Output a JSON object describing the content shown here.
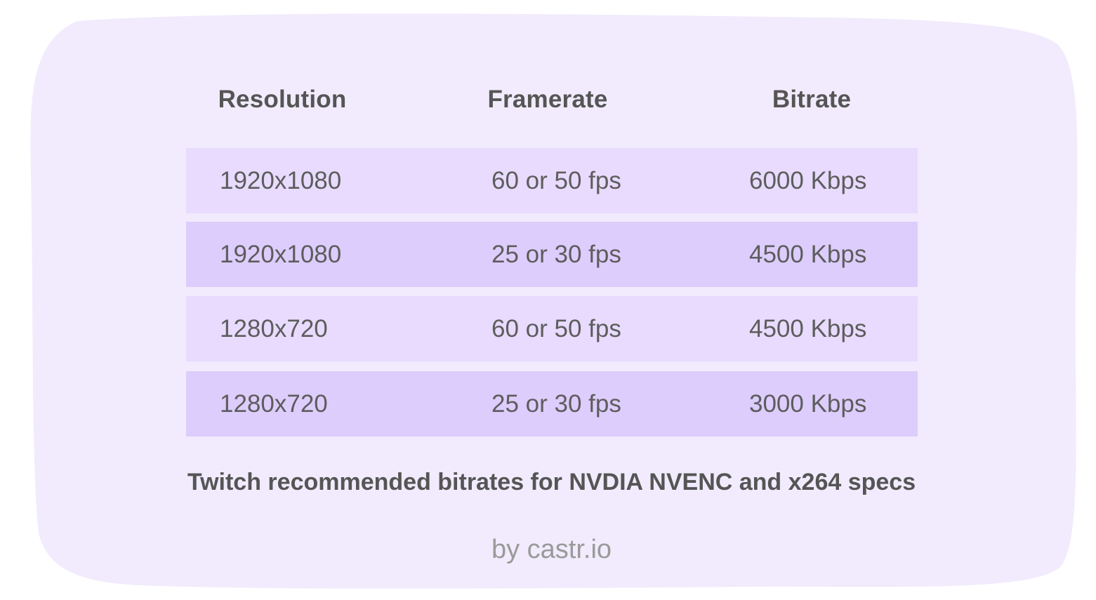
{
  "colors": {
    "background_blob": "#f1ebfd",
    "row_light": "#e8dbfe",
    "row_dark": "#ddcdfc",
    "header_text": "#555555",
    "cell_text": "#5d5d5d",
    "credit_text": "#9a9a9a"
  },
  "chart_data": {
    "type": "table",
    "columns": [
      "Resolution",
      "Framerate",
      "Bitrate"
    ],
    "rows": [
      [
        "1920x1080",
        "60 or 50 fps",
        "6000 Kbps"
      ],
      [
        "1920x1080",
        "25 or 30 fps",
        "4500 Kbps"
      ],
      [
        "1280x720",
        "60 or 50 fps",
        "4500 Kbps"
      ],
      [
        "1280x720",
        "25 or 30 fps",
        "3000 Kbps"
      ]
    ],
    "caption": "Twitch recommended bitrates for NVDIA NVENC and x264 specs",
    "credit": "by castr.io"
  }
}
